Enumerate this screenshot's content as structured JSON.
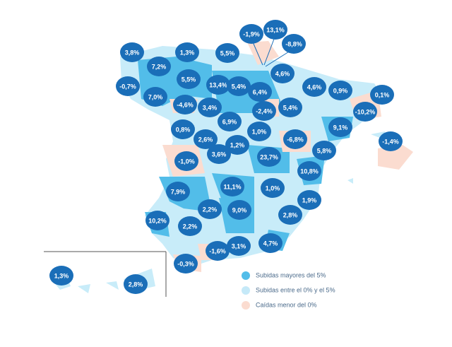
{
  "markers": [
    {
      "label": "3,8%"
    },
    {
      "label": "1,3%"
    },
    {
      "label": "5,5%"
    },
    {
      "label": "-1,9%"
    },
    {
      "label": "13,1%"
    },
    {
      "label": "-8,8%"
    },
    {
      "label": "7,2%"
    },
    {
      "label": "4,6%"
    },
    {
      "label": "-0,7%"
    },
    {
      "label": "5,5%"
    },
    {
      "label": "13,4%"
    },
    {
      "label": "5,4%"
    },
    {
      "label": "6,4%"
    },
    {
      "label": "4,6%"
    },
    {
      "label": "0,9%"
    },
    {
      "label": "0,1%"
    },
    {
      "label": "7,0%"
    },
    {
      "label": "-4,6%"
    },
    {
      "label": "3,4%"
    },
    {
      "label": "-2,4%"
    },
    {
      "label": "5,4%"
    },
    {
      "label": "-10,2%"
    },
    {
      "label": "6,9%"
    },
    {
      "label": "1,0%"
    },
    {
      "label": "9,1%"
    },
    {
      "label": "0,8%"
    },
    {
      "label": "2,6%"
    },
    {
      "label": "1,2%"
    },
    {
      "label": "-6,8%"
    },
    {
      "label": "-1,4%"
    },
    {
      "label": "-1,0%"
    },
    {
      "label": "3,6%"
    },
    {
      "label": "23,7%"
    },
    {
      "label": "5,8%"
    },
    {
      "label": "10,8%"
    },
    {
      "label": "7,9%"
    },
    {
      "label": "11,1%"
    },
    {
      "label": "1,0%"
    },
    {
      "label": "1,9%"
    },
    {
      "label": "2,2%"
    },
    {
      "label": "9,0%"
    },
    {
      "label": "2,8%"
    },
    {
      "label": "10,2%"
    },
    {
      "label": "2,2%"
    },
    {
      "label": "-1,6%"
    },
    {
      "label": "3,1%"
    },
    {
      "label": "4,7%"
    },
    {
      "label": "-0,3%"
    },
    {
      "label": "1,3%"
    },
    {
      "label": "2,8%"
    }
  ],
  "legend": [
    {
      "label": "Subidas mayores del 5%",
      "color": "#52bde9"
    },
    {
      "label": "Subidas entre el 0% y el 5%",
      "color": "#c5e9f8"
    },
    {
      "label": "Caídas menor del 0%",
      "color": "#fbdcd0"
    }
  ]
}
